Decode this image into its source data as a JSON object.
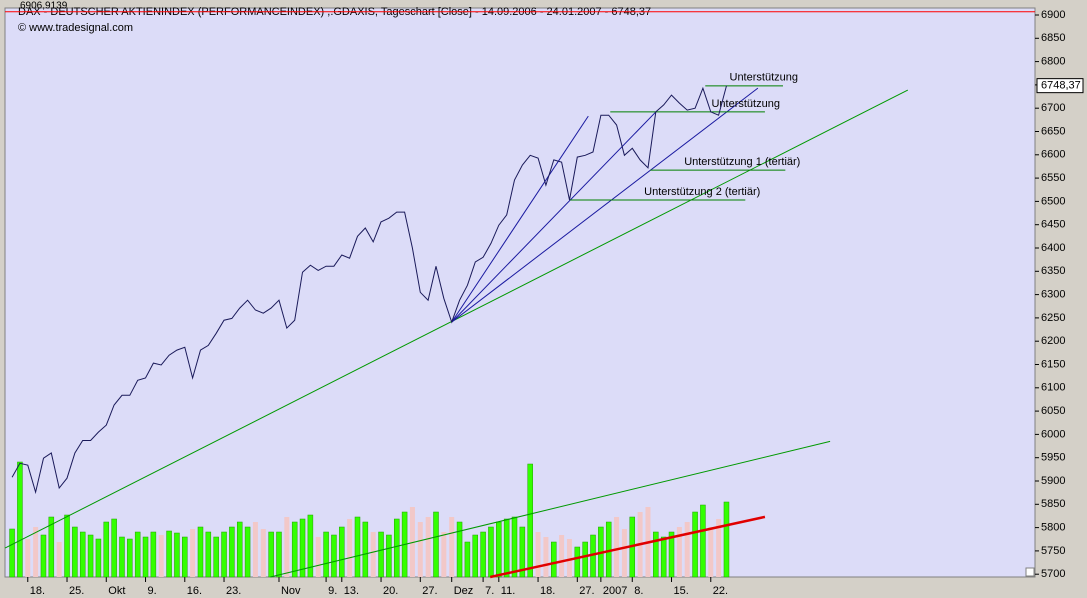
{
  "chart_data": {
    "type": "line",
    "title": "DAX - DEUTSCHER AKTIENINDEX (PERFORMANCEINDEX) ,.GDAXIS, Tageschart [Close] - 14.09.2006 - 24.01.2007 - 6748,37",
    "subtitle": "© www.tradesignal.com",
    "top_label": {
      "value": 6906.9139,
      "label": "6906,9139",
      "color": "#ff0000"
    },
    "last_label": {
      "value": 6748.37,
      "label": "6748,37"
    },
    "xlim": [
      -0.9,
      130.3
    ],
    "ylim": [
      5694,
      6915
    ],
    "yticks": [
      5700,
      5750,
      5800,
      5850,
      5900,
      5950,
      6000,
      6050,
      6100,
      6150,
      6200,
      6250,
      6300,
      6350,
      6400,
      6450,
      6500,
      6550,
      6600,
      6650,
      6700,
      6750,
      6800,
      6850,
      6900
    ],
    "xticks": [
      {
        "value": 2,
        "label": "18."
      },
      {
        "value": 7,
        "label": "25."
      },
      {
        "value": 12,
        "label": "Okt"
      },
      {
        "value": 17,
        "label": "9."
      },
      {
        "value": 22,
        "label": "16."
      },
      {
        "value": 27,
        "label": "23."
      },
      {
        "value": 34,
        "label": "Nov"
      },
      {
        "value": 40,
        "label": "9."
      },
      {
        "value": 42,
        "label": "13."
      },
      {
        "value": 47,
        "label": "20."
      },
      {
        "value": 52,
        "label": "27."
      },
      {
        "value": 56,
        "label": "Dez"
      },
      {
        "value": 60,
        "label": "7."
      },
      {
        "value": 62,
        "label": "11."
      },
      {
        "value": 67,
        "label": "18."
      },
      {
        "value": 72,
        "label": "27."
      },
      {
        "value": 75,
        "label": "2007"
      },
      {
        "value": 79,
        "label": "8."
      },
      {
        "value": 84,
        "label": "15."
      },
      {
        "value": 89,
        "label": "22."
      }
    ],
    "series": [
      {
        "color": "#1a1a5a",
        "values": [
          5908,
          5938,
          5934,
          5876,
          5949,
          5960,
          5885,
          5906,
          5960,
          5987,
          5987,
          6005,
          6020,
          6063,
          6084,
          6084,
          6116,
          6121,
          6153,
          6149,
          6170,
          6181,
          6187,
          6121,
          6181,
          6191,
          6217,
          6245,
          6249,
          6271,
          6288,
          6267,
          6260,
          6271,
          6288,
          6228,
          6245,
          6348,
          6363,
          6352,
          6361,
          6361,
          6385,
          6378,
          6425,
          6443,
          6413,
          6456,
          6464,
          6477,
          6477,
          6400,
          6305,
          6288,
          6361,
          6292,
          6241,
          6288,
          6320,
          6370,
          6380,
          6410,
          6449,
          6471,
          6546,
          6578,
          6599,
          6593,
          6535,
          6589,
          6584,
          6503,
          6595,
          6599,
          6606,
          6685,
          6685,
          6664,
          6599,
          6614,
          6589,
          6572,
          6692,
          6707,
          6728,
          6711,
          6696,
          6700,
          6743,
          6692,
          6685,
          6748.37
        ]
      }
    ],
    "volume": {
      "up_color": "#33ff00",
      "down_color": "#f2c8c8",
      "vlim": [
        0,
        569
      ],
      "values": [
        48,
        115,
        38,
        50,
        42,
        60,
        35,
        62,
        50,
        45,
        42,
        38,
        55,
        58,
        40,
        38,
        45,
        40,
        45,
        42,
        46,
        44,
        40,
        48,
        50,
        45,
        40,
        45,
        50,
        55,
        50,
        55,
        48,
        45,
        45,
        60,
        55,
        58,
        62,
        40,
        45,
        42,
        50,
        58,
        60,
        55,
        45,
        45,
        42,
        58,
        65,
        70,
        55,
        60,
        65,
        45,
        60,
        55,
        35,
        42,
        45,
        50,
        55,
        58,
        60,
        50,
        113,
        45,
        40,
        35,
        42,
        38,
        30,
        35,
        42,
        50,
        55,
        60,
        48,
        60,
        65,
        70,
        45,
        40,
        45,
        50,
        55,
        65,
        72,
        50,
        58,
        75
      ]
    },
    "lines": [
      {
        "color": "#009900",
        "width": 1,
        "x": [
          -0.9,
          114.1
        ],
        "y": [
          5756,
          6739
        ]
      },
      {
        "color": "#009900",
        "width": 1,
        "x": [
          32.9,
          104.2
        ],
        "y": [
          5694,
          5985
        ]
      },
      {
        "color": "#e00000",
        "width": 2.5,
        "x": [
          60.9,
          95.9
        ],
        "y": [
          5694,
          5823
        ]
      },
      {
        "color": "#1a1aa0",
        "width": 1,
        "x": [
          56,
          73.4
        ],
        "y": [
          6241,
          6683
        ]
      },
      {
        "color": "#1a1aa0",
        "width": 1,
        "x": [
          56,
          82
        ],
        "y": [
          6241,
          6692
        ]
      },
      {
        "color": "#1a1aa0",
        "width": 1,
        "x": [
          56,
          95
        ],
        "y": [
          6241,
          6743
        ]
      }
    ],
    "annotations": [
      {
        "text": "Unterstützung",
        "color": "#008000",
        "x": [
          88.3,
          98.2
        ],
        "y": 6748
      },
      {
        "text": "Unterstützung",
        "color": "#008000",
        "x": [
          76.2,
          95.9
        ],
        "y": 6692
      },
      {
        "text": "Unterstützung 1 (tertiär)",
        "color": "#008000",
        "x": [
          81.3,
          98.5
        ],
        "y": 6567
      },
      {
        "text": "Unterstützung 2 (tertiär)",
        "color": "#008000",
        "x": [
          71.1,
          93.4
        ],
        "y": 6503
      }
    ]
  }
}
